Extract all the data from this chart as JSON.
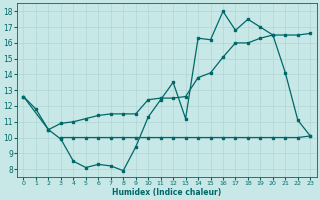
{
  "bg_color": "#c8e8e8",
  "grid_color": "#b0d4d4",
  "line_color": "#006868",
  "xlabel": "Humidex (Indice chaleur)",
  "xlim": [
    -0.5,
    23.5
  ],
  "ylim": [
    7.5,
    18.5
  ],
  "yticks": [
    8,
    9,
    10,
    11,
    12,
    13,
    14,
    15,
    16,
    17,
    18
  ],
  "xticks": [
    0,
    1,
    2,
    3,
    4,
    5,
    6,
    7,
    8,
    9,
    10,
    11,
    12,
    13,
    14,
    15,
    16,
    17,
    18,
    19,
    20,
    21,
    22,
    23
  ],
  "line1_x": [
    0,
    1,
    2,
    3,
    4,
    5,
    6,
    7,
    8,
    9,
    10,
    11,
    12,
    13,
    14,
    15,
    16,
    17,
    18,
    19,
    20,
    21,
    22,
    23
  ],
  "line1_y": [
    12.6,
    11.8,
    10.5,
    9.9,
    8.5,
    8.1,
    8.3,
    8.2,
    7.9,
    9.4,
    11.3,
    12.4,
    13.5,
    11.2,
    16.3,
    16.2,
    18.0,
    16.8,
    17.5,
    17.0,
    16.5,
    14.1,
    11.1,
    10.1
  ],
  "line2_x": [
    0,
    2,
    3,
    4,
    5,
    6,
    7,
    8,
    9,
    10,
    11,
    12,
    13,
    14,
    15,
    16,
    17,
    18,
    19,
    20,
    21,
    22,
    23
  ],
  "line2_y": [
    12.6,
    10.5,
    10.9,
    11.0,
    11.2,
    11.4,
    11.5,
    11.5,
    11.5,
    12.4,
    12.5,
    12.5,
    12.6,
    13.8,
    14.1,
    15.1,
    16.0,
    16.0,
    16.3,
    16.5,
    16.5,
    16.5,
    16.6
  ],
  "line3_x": [
    3,
    4,
    5,
    6,
    7,
    8,
    9,
    10,
    11,
    12,
    13,
    14,
    15,
    16,
    17,
    18,
    19,
    20,
    21,
    22,
    23
  ],
  "line3_y": [
    10.0,
    10.0,
    10.0,
    10.0,
    10.0,
    10.0,
    10.0,
    10.0,
    10.0,
    10.0,
    10.0,
    10.0,
    10.0,
    10.0,
    10.0,
    10.0,
    10.0,
    10.0,
    10.0,
    10.0,
    10.1
  ]
}
